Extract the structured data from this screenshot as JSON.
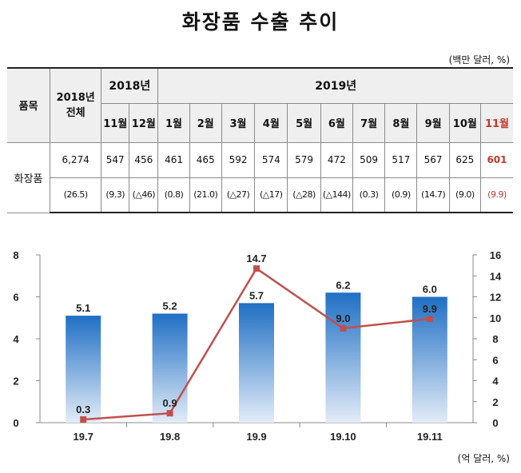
{
  "title": "화장품 수출 추이",
  "table_unit": "(백만 달러, %)",
  "table": {
    "item_header": "품목",
    "total_header": "2018년\n전체",
    "group_2018": "2018년",
    "group_2019": "2019년",
    "months_2018": [
      "11월",
      "12월"
    ],
    "months_2019": [
      "1월",
      "2월",
      "3월",
      "4월",
      "5월",
      "6월",
      "7월",
      "8월",
      "9월",
      "10월",
      "11월"
    ],
    "row_label": "화장품",
    "values": [
      "6,274",
      "547",
      "456",
      "461",
      "465",
      "592",
      "574",
      "579",
      "472",
      "509",
      "517",
      "567",
      "625",
      "601"
    ],
    "changes": [
      "(26.5)",
      "(9.3)",
      "(△46)",
      "(0.8)",
      "(21.0)",
      "(△27)",
      "(△17)",
      "(△28)",
      "(△144)",
      "(0.3)",
      "(0.9)",
      "(14.7)",
      "(9.0)",
      "(9.9)"
    ]
  },
  "chart_unit": "(억 달러, %)",
  "chart_data": {
    "type": "bar",
    "categories": [
      "19.7",
      "19.8",
      "19.9",
      "19.10",
      "19.11"
    ],
    "series": [
      {
        "type": "bar",
        "axis": "left",
        "values": [
          5.1,
          5.2,
          5.7,
          6.2,
          6.0
        ],
        "labels": [
          "5.1",
          "5.2",
          "5.7",
          "6.2",
          "6.0"
        ]
      },
      {
        "type": "line",
        "axis": "right",
        "values": [
          0.3,
          0.9,
          14.7,
          9.0,
          9.9
        ],
        "labels": [
          "0.3",
          "0.9",
          "14.7",
          "9.0",
          "9.9"
        ]
      }
    ],
    "ylim_left": [
      0,
      8
    ],
    "yticks_left": [
      "0",
      "2",
      "4",
      "6",
      "8"
    ],
    "ylim_right": [
      0,
      16
    ],
    "yticks_right": [
      "0",
      "2",
      "4",
      "6",
      "8",
      "10",
      "12",
      "14",
      "16"
    ],
    "grid": false,
    "colors": {
      "bar_top": "#1f6fc4",
      "bar_bottom": "#e3ecf8",
      "line": "#c0504d",
      "marker": "#c0504d"
    }
  }
}
